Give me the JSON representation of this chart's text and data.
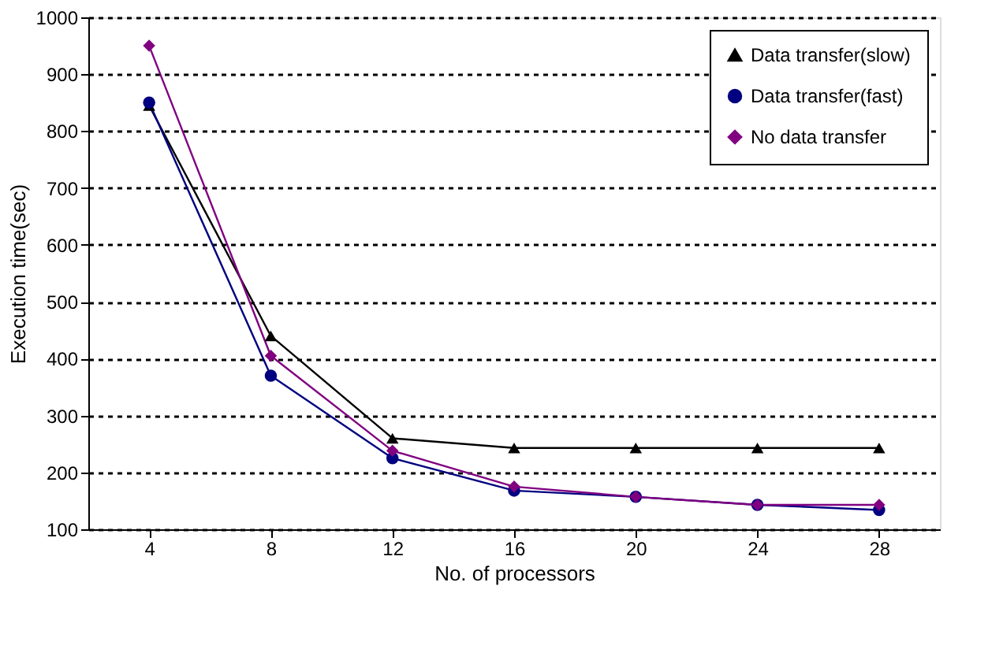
{
  "chart_data": {
    "type": "line",
    "xlabel": "No. of processors",
    "ylabel": "Execution time(sec)",
    "categories": [
      "4",
      "8",
      "12",
      "16",
      "20",
      "24",
      "28"
    ],
    "series": [
      {
        "name": "Data transfer(slow)",
        "color": "#000000",
        "marker": "triangle",
        "values": [
          845,
          440,
          260,
          243,
          243,
          243,
          243
        ]
      },
      {
        "name": "Data transfer(fast)",
        "color": "#000080",
        "marker": "circle",
        "values": [
          850,
          370,
          225,
          168,
          157,
          143,
          134
        ]
      },
      {
        "name": "No data transfer",
        "color": "#800080",
        "marker": "diamond",
        "values": [
          950,
          405,
          238,
          175,
          157,
          143,
          143
        ]
      }
    ],
    "ylim": [
      100,
      1000
    ],
    "yticks": [
      100,
      200,
      300,
      400,
      500,
      600,
      700,
      800,
      900,
      1000
    ],
    "grid": "y",
    "legend": "top right",
    "line_style": "solid"
  }
}
